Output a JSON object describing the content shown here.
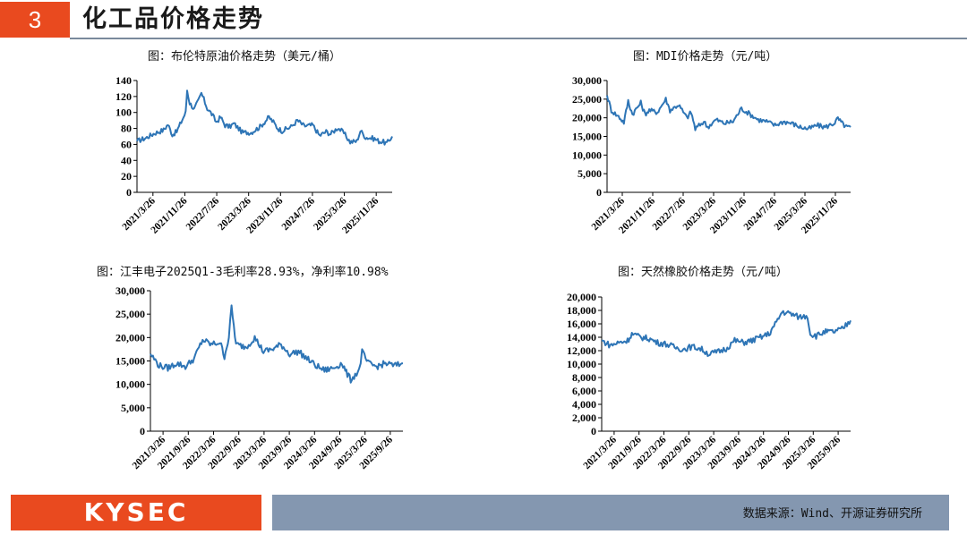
{
  "header": {
    "section_number": "3",
    "title": "化工品价格走势"
  },
  "footer": {
    "logo_text": "KYSEC",
    "source": "数据来源：Wind、开源证券研究所"
  },
  "chart_data": [
    {
      "id": "brent",
      "type": "line",
      "title": "图：布伦特原油价格走势（美元/桶）",
      "color": "#2e75b6",
      "ylim": [
        0,
        140
      ],
      "yticks": [
        "0",
        "20",
        "40",
        "60",
        "80",
        "100",
        "120",
        "140"
      ],
      "xtick_labels": [
        "2021/3/26",
        "2021/11/26",
        "2022/7/26",
        "2023/3/26",
        "2023/11/26",
        "2024/7/26",
        "2025/3/26",
        "2025/11/26"
      ],
      "x_start": "2021/3/26",
      "x_end": "2026/1/26",
      "series": [
        {
          "points": [
            [
              "2021/3/26",
              64
            ],
            [
              "2021/5/26",
              68
            ],
            [
              "2021/7/26",
              74
            ],
            [
              "2021/9/26",
              78
            ],
            [
              "2021/10/26",
              85
            ],
            [
              "2021/11/26",
              72
            ],
            [
              "2021/12/26",
              76
            ],
            [
              "2022/1/26",
              88
            ],
            [
              "2022/2/26",
              100
            ],
            [
              "2022/3/8",
              128
            ],
            [
              "2022/3/26",
              112
            ],
            [
              "2022/4/26",
              104
            ],
            [
              "2022/5/26",
              115
            ],
            [
              "2022/6/15",
              124
            ],
            [
              "2022/7/26",
              105
            ],
            [
              "2022/8/26",
              98
            ],
            [
              "2022/9/26",
              88
            ],
            [
              "2022/10/26",
              94
            ],
            [
              "2022/11/26",
              84
            ],
            [
              "2022/12/26",
              82
            ],
            [
              "2023/1/26",
              86
            ],
            [
              "2023/3/26",
              75
            ],
            [
              "2023/5/26",
              75
            ],
            [
              "2023/7/26",
              82
            ],
            [
              "2023/9/26",
              94
            ],
            [
              "2023/10/26",
              88
            ],
            [
              "2023/11/26",
              80
            ],
            [
              "2023/12/26",
              77
            ],
            [
              "2024/2/26",
              82
            ],
            [
              "2024/4/10",
              90
            ],
            [
              "2024/5/26",
              83
            ],
            [
              "2024/7/26",
              84
            ],
            [
              "2024/9/10",
              71
            ],
            [
              "2024/10/26",
              76
            ],
            [
              "2024/11/26",
              73
            ],
            [
              "2025/1/15",
              81
            ],
            [
              "2025/2/26",
              74
            ],
            [
              "2025/4/10",
              63
            ],
            [
              "2025/5/26",
              64
            ],
            [
              "2025/6/20",
              77
            ],
            [
              "2025/7/26",
              69
            ],
            [
              "2025/9/26",
              67
            ],
            [
              "2025/10/26",
              64
            ],
            [
              "2025/11/26",
              63
            ],
            [
              "2025/12/20",
              61
            ],
            [
              "2026/1/26",
              70
            ]
          ]
        }
      ]
    },
    {
      "id": "mdi",
      "type": "line",
      "title": "图：MDI价格走势（元/吨）",
      "color": "#2e75b6",
      "ylim": [
        0,
        30000
      ],
      "yticks": [
        "0",
        "5,000",
        "10,000",
        "15,000",
        "20,000",
        "25,000",
        "30,000"
      ],
      "xtick_labels": [
        "2021/3/26",
        "2021/11/26",
        "2022/7/26",
        "2023/3/26",
        "2023/11/26",
        "2024/7/26",
        "2025/3/26",
        "2025/11/26"
      ],
      "x_start": "2021/3/26",
      "x_end": "2026/1/26",
      "series": [
        {
          "points": [
            [
              "2021/3/26",
              26000
            ],
            [
              "2021/4/26",
              22000
            ],
            [
              "2021/6/26",
              20000
            ],
            [
              "2021/7/26",
              18800
            ],
            [
              "2021/8/26",
              24500
            ],
            [
              "2021/9/26",
              21000
            ],
            [
              "2021/11/26",
              24000
            ],
            [
              "2021/12/26",
              21000
            ],
            [
              "2022/1/26",
              22000
            ],
            [
              "2022/3/26",
              21500
            ],
            [
              "2022/5/26",
              25000
            ],
            [
              "2022/6/26",
              22000
            ],
            [
              "2022/8/26",
              23500
            ],
            [
              "2022/10/26",
              20000
            ],
            [
              "2022/11/26",
              21500
            ],
            [
              "2022/12/26",
              17000
            ],
            [
              "2023/2/26",
              19000
            ],
            [
              "2023/3/26",
              17500
            ],
            [
              "2023/5/26",
              19500
            ],
            [
              "2023/7/26",
              18500
            ],
            [
              "2023/9/26",
              19000
            ],
            [
              "2023/11/26",
              22500
            ],
            [
              "2024/1/26",
              21000
            ],
            [
              "2024/3/26",
              19500
            ],
            [
              "2024/5/26",
              19000
            ],
            [
              "2024/7/26",
              18000
            ],
            [
              "2024/9/26",
              19000
            ],
            [
              "2024/11/26",
              18500
            ],
            [
              "2025/1/26",
              17500
            ],
            [
              "2025/3/26",
              17000
            ],
            [
              "2025/5/26",
              18000
            ],
            [
              "2025/7/26",
              17500
            ],
            [
              "2025/9/26",
              18500
            ],
            [
              "2025/10/26",
              19800
            ],
            [
              "2025/11/26",
              18500
            ],
            [
              "2025/12/26",
              17500
            ],
            [
              "2026/1/26",
              17500
            ]
          ]
        }
      ]
    },
    {
      "id": "jiangfeng",
      "type": "line",
      "title": "图：江丰电子2025Q1-3毛利率28.93%，净利率10.98%",
      "color": "#2e75b6",
      "ylim": [
        0,
        30000
      ],
      "yticks": [
        "0",
        "5,000",
        "10,000",
        "15,000",
        "20,000",
        "25,000",
        "30,000"
      ],
      "xtick_labels": [
        "2021/3/26",
        "2021/9/26",
        "2022/3/26",
        "2022/9/26",
        "2023/3/26",
        "2023/9/26",
        "2024/3/26",
        "2024/9/26",
        "2025/3/26",
        "2025/9/26"
      ],
      "x_start": "2021/3/26",
      "x_end": "2026/1/26",
      "series": [
        {
          "points": [
            [
              "2021/3/26",
              16500
            ],
            [
              "2021/5/26",
              14000
            ],
            [
              "2021/7/26",
              13500
            ],
            [
              "2021/9/26",
              14500
            ],
            [
              "2021/11/26",
              13800
            ],
            [
              "2022/1/26",
              15500
            ],
            [
              "2022/3/26",
              19500
            ],
            [
              "2022/5/26",
              18500
            ],
            [
              "2022/7/26",
              19000
            ],
            [
              "2022/8/26",
              16000
            ],
            [
              "2022/9/26",
              20000
            ],
            [
              "2022/10/15",
              26500
            ],
            [
              "2022/11/15",
              18500
            ],
            [
              "2023/1/26",
              18000
            ],
            [
              "2023/3/26",
              20000
            ],
            [
              "2023/5/26",
              17000
            ],
            [
              "2023/7/26",
              17500
            ],
            [
              "2023/9/26",
              18500
            ],
            [
              "2023/11/26",
              16500
            ],
            [
              "2024/1/26",
              17000
            ],
            [
              "2024/3/26",
              15500
            ],
            [
              "2024/5/26",
              14000
            ],
            [
              "2024/7/26",
              13000
            ],
            [
              "2024/9/26",
              13500
            ],
            [
              "2024/11/26",
              14500
            ],
            [
              "2024/12/26",
              12500
            ],
            [
              "2025/1/26",
              11000
            ],
            [
              "2025/2/26",
              12000
            ],
            [
              "2025/3/26",
              13000
            ],
            [
              "2025/4/15",
              17000
            ],
            [
              "2025/5/26",
              14500
            ],
            [
              "2025/7/26",
              13800
            ],
            [
              "2025/9/26",
              14500
            ],
            [
              "2025/11/26",
              14000
            ],
            [
              "2026/1/26",
              14500
            ]
          ]
        }
      ]
    },
    {
      "id": "rubber",
      "type": "line",
      "title": "图：天然橡胶价格走势（元/吨）",
      "color": "#2e75b6",
      "ylim": [
        0,
        20000
      ],
      "yticks": [
        "0",
        "2,000",
        "4,000",
        "6,000",
        "8,000",
        "10,000",
        "12,000",
        "14,000",
        "16,000",
        "18,000",
        "20,000"
      ],
      "xtick_labels": [
        "2021/3/26",
        "2021/9/26",
        "2022/3/26",
        "2022/9/26",
        "2023/3/26",
        "2023/9/26",
        "2024/3/26",
        "2024/9/26",
        "2025/3/26",
        "2025/9/26"
      ],
      "x_start": "2021/3/26",
      "x_end": "2026/1/26",
      "series": [
        {
          "points": [
            [
              "2021/3/26",
              13500
            ],
            [
              "2021/5/26",
              12800
            ],
            [
              "2021/7/26",
              13200
            ],
            [
              "2021/9/26",
              13500
            ],
            [
              "2021/10/26",
              14500
            ],
            [
              "2021/12/26",
              14000
            ],
            [
              "2022/2/26",
              13800
            ],
            [
              "2022/4/26",
              13200
            ],
            [
              "2022/6/26",
              13000
            ],
            [
              "2022/8/26",
              12500
            ],
            [
              "2022/10/26",
              12200
            ],
            [
              "2022/12/26",
              12600
            ],
            [
              "2023/2/26",
              12300
            ],
            [
              "2023/4/26",
              11500
            ],
            [
              "2023/6/26",
              11800
            ],
            [
              "2023/8/26",
              12300
            ],
            [
              "2023/10/26",
              13500
            ],
            [
              "2023/12/26",
              13200
            ],
            [
              "2024/2/26",
              13500
            ],
            [
              "2024/4/26",
              14000
            ],
            [
              "2024/6/26",
              14500
            ],
            [
              "2024/8/26",
              16500
            ],
            [
              "2024/9/26",
              17800
            ],
            [
              "2024/11/26",
              17500
            ],
            [
              "2025/1/26",
              17000
            ],
            [
              "2025/3/26",
              17200
            ],
            [
              "2025/4/15",
              14500
            ],
            [
              "2025/5/26",
              14200
            ],
            [
              "2025/7/26",
              14800
            ],
            [
              "2025/9/26",
              14800
            ],
            [
              "2025/11/26",
              15200
            ],
            [
              "2026/1/26",
              16500
            ]
          ]
        }
      ]
    }
  ]
}
